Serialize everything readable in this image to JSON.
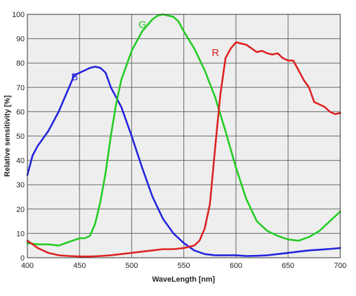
{
  "chart_data": {
    "type": "line",
    "xlabel": "WaveLength [nm]",
    "ylabel": "Relative sensitivity [%]",
    "xlim": [
      400,
      700
    ],
    "ylim": [
      0,
      100
    ],
    "x_ticks": [
      400,
      450,
      500,
      550,
      600,
      650,
      700
    ],
    "y_ticks": [
      0,
      10,
      20,
      30,
      40,
      50,
      60,
      70,
      80,
      90,
      100
    ],
    "grid": true,
    "background": "#eeeeee",
    "series": [
      {
        "name": "B",
        "color": "#2222dd",
        "points": [
          [
            400,
            34
          ],
          [
            405,
            42
          ],
          [
            410,
            46
          ],
          [
            420,
            52
          ],
          [
            430,
            60
          ],
          [
            440,
            70
          ],
          [
            445,
            75
          ],
          [
            450,
            76
          ],
          [
            455,
            77
          ],
          [
            460,
            78
          ],
          [
            465,
            78.5
          ],
          [
            470,
            78
          ],
          [
            475,
            76
          ],
          [
            480,
            70
          ],
          [
            490,
            62
          ],
          [
            500,
            50
          ],
          [
            510,
            37
          ],
          [
            520,
            25
          ],
          [
            530,
            16
          ],
          [
            540,
            10
          ],
          [
            550,
            6
          ],
          [
            560,
            3
          ],
          [
            570,
            1.5
          ],
          [
            580,
            1
          ],
          [
            590,
            1
          ],
          [
            600,
            1
          ],
          [
            610,
            0.7
          ],
          [
            620,
            0.8
          ],
          [
            630,
            1
          ],
          [
            640,
            1.5
          ],
          [
            650,
            2
          ],
          [
            660,
            2.5
          ],
          [
            670,
            3
          ],
          [
            680,
            3.3
          ],
          [
            690,
            3.6
          ],
          [
            700,
            4
          ]
        ]
      },
      {
        "name": "G",
        "color": "#22cc22",
        "points": [
          [
            400,
            6
          ],
          [
            410,
            5.5
          ],
          [
            420,
            5.5
          ],
          [
            430,
            5
          ],
          [
            440,
            6.5
          ],
          [
            450,
            8
          ],
          [
            455,
            8
          ],
          [
            460,
            9
          ],
          [
            465,
            14
          ],
          [
            470,
            23
          ],
          [
            475,
            35
          ],
          [
            480,
            50
          ],
          [
            485,
            63
          ],
          [
            490,
            73
          ],
          [
            495,
            79
          ],
          [
            500,
            85
          ],
          [
            510,
            93
          ],
          [
            520,
            98
          ],
          [
            525,
            99.5
          ],
          [
            530,
            100
          ],
          [
            535,
            99.5
          ],
          [
            540,
            99
          ],
          [
            545,
            97
          ],
          [
            550,
            93
          ],
          [
            560,
            86
          ],
          [
            570,
            77
          ],
          [
            580,
            66
          ],
          [
            590,
            52
          ],
          [
            600,
            37
          ],
          [
            610,
            24
          ],
          [
            620,
            15
          ],
          [
            630,
            11
          ],
          [
            640,
            9
          ],
          [
            650,
            7.5
          ],
          [
            660,
            7
          ],
          [
            670,
            8.5
          ],
          [
            680,
            11
          ],
          [
            690,
            15
          ],
          [
            700,
            19
          ]
        ]
      },
      {
        "name": "R",
        "color": "#dd2222",
        "points": [
          [
            400,
            7
          ],
          [
            410,
            4
          ],
          [
            420,
            2
          ],
          [
            430,
            1
          ],
          [
            440,
            0.7
          ],
          [
            450,
            0.5
          ],
          [
            460,
            0.5
          ],
          [
            470,
            0.7
          ],
          [
            480,
            1
          ],
          [
            490,
            1.5
          ],
          [
            500,
            2
          ],
          [
            510,
            2.5
          ],
          [
            520,
            3
          ],
          [
            530,
            3.5
          ],
          [
            540,
            3.5
          ],
          [
            550,
            4
          ],
          [
            560,
            5
          ],
          [
            565,
            7
          ],
          [
            570,
            12
          ],
          [
            575,
            22
          ],
          [
            580,
            45
          ],
          [
            585,
            67
          ],
          [
            590,
            82
          ],
          [
            595,
            86
          ],
          [
            600,
            88.5
          ],
          [
            605,
            88
          ],
          [
            610,
            87.5
          ],
          [
            615,
            86
          ],
          [
            620,
            84.5
          ],
          [
            625,
            85
          ],
          [
            630,
            84
          ],
          [
            635,
            83.5
          ],
          [
            640,
            84
          ],
          [
            645,
            82
          ],
          [
            650,
            81
          ],
          [
            655,
            81
          ],
          [
            660,
            77
          ],
          [
            665,
            73
          ],
          [
            670,
            70
          ],
          [
            675,
            64
          ],
          [
            680,
            63
          ],
          [
            685,
            62
          ],
          [
            690,
            60
          ],
          [
            695,
            59
          ],
          [
            700,
            59.5
          ]
        ]
      }
    ]
  }
}
